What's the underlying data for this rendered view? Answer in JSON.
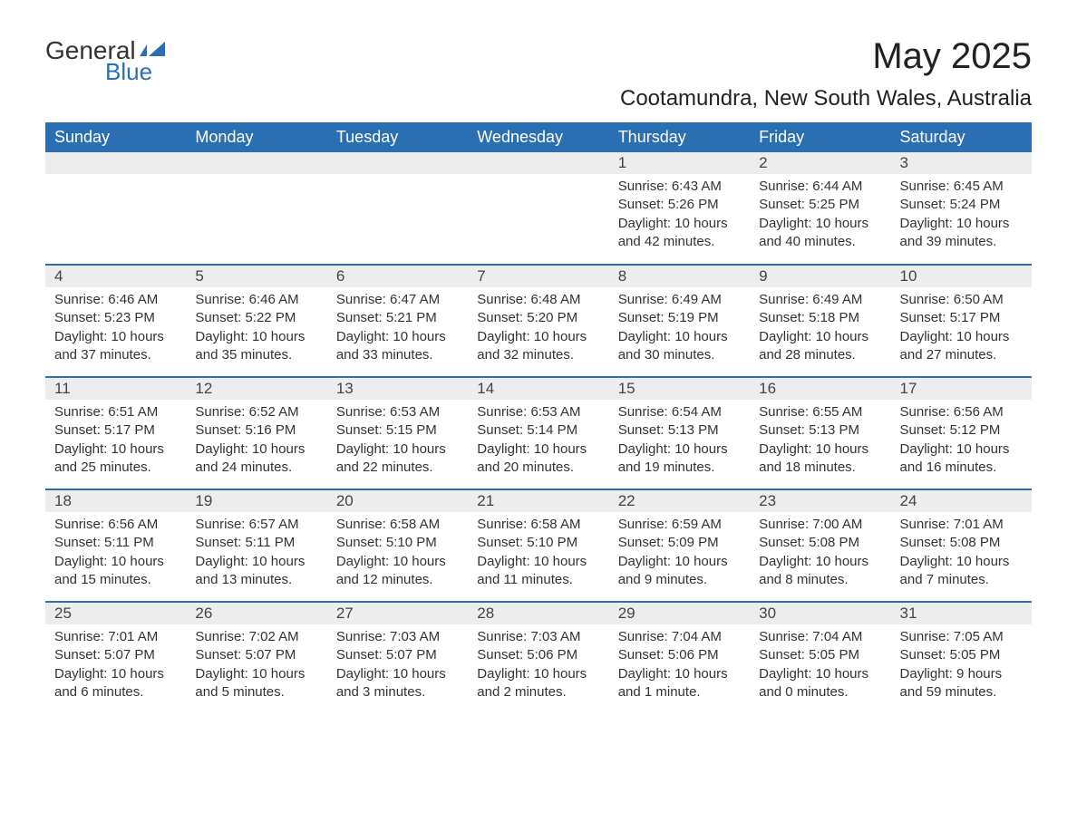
{
  "logo": {
    "text1": "General",
    "text2": "Blue",
    "icon_color": "#2b6fb3"
  },
  "title": "May 2025",
  "location": "Cootamundra, New South Wales, Australia",
  "colors": {
    "header_bg": "#2b6fb3",
    "header_fg": "#ffffff",
    "row_rule": "#2b6fb3",
    "daynum_bg": "#ededed",
    "text": "#333333",
    "background": "#ffffff"
  },
  "fonts": {
    "title_size": 40,
    "location_size": 24,
    "th_size": 18,
    "daynum_size": 17,
    "body_size": 15
  },
  "weekdays": [
    "Sunday",
    "Monday",
    "Tuesday",
    "Wednesday",
    "Thursday",
    "Friday",
    "Saturday"
  ],
  "weeks": [
    [
      null,
      null,
      null,
      null,
      {
        "n": "1",
        "sunrise": "6:43 AM",
        "sunset": "5:26 PM",
        "daylight": "10 hours and 42 minutes."
      },
      {
        "n": "2",
        "sunrise": "6:44 AM",
        "sunset": "5:25 PM",
        "daylight": "10 hours and 40 minutes."
      },
      {
        "n": "3",
        "sunrise": "6:45 AM",
        "sunset": "5:24 PM",
        "daylight": "10 hours and 39 minutes."
      }
    ],
    [
      {
        "n": "4",
        "sunrise": "6:46 AM",
        "sunset": "5:23 PM",
        "daylight": "10 hours and 37 minutes."
      },
      {
        "n": "5",
        "sunrise": "6:46 AM",
        "sunset": "5:22 PM",
        "daylight": "10 hours and 35 minutes."
      },
      {
        "n": "6",
        "sunrise": "6:47 AM",
        "sunset": "5:21 PM",
        "daylight": "10 hours and 33 minutes."
      },
      {
        "n": "7",
        "sunrise": "6:48 AM",
        "sunset": "5:20 PM",
        "daylight": "10 hours and 32 minutes."
      },
      {
        "n": "8",
        "sunrise": "6:49 AM",
        "sunset": "5:19 PM",
        "daylight": "10 hours and 30 minutes."
      },
      {
        "n": "9",
        "sunrise": "6:49 AM",
        "sunset": "5:18 PM",
        "daylight": "10 hours and 28 minutes."
      },
      {
        "n": "10",
        "sunrise": "6:50 AM",
        "sunset": "5:17 PM",
        "daylight": "10 hours and 27 minutes."
      }
    ],
    [
      {
        "n": "11",
        "sunrise": "6:51 AM",
        "sunset": "5:17 PM",
        "daylight": "10 hours and 25 minutes."
      },
      {
        "n": "12",
        "sunrise": "6:52 AM",
        "sunset": "5:16 PM",
        "daylight": "10 hours and 24 minutes."
      },
      {
        "n": "13",
        "sunrise": "6:53 AM",
        "sunset": "5:15 PM",
        "daylight": "10 hours and 22 minutes."
      },
      {
        "n": "14",
        "sunrise": "6:53 AM",
        "sunset": "5:14 PM",
        "daylight": "10 hours and 20 minutes."
      },
      {
        "n": "15",
        "sunrise": "6:54 AM",
        "sunset": "5:13 PM",
        "daylight": "10 hours and 19 minutes."
      },
      {
        "n": "16",
        "sunrise": "6:55 AM",
        "sunset": "5:13 PM",
        "daylight": "10 hours and 18 minutes."
      },
      {
        "n": "17",
        "sunrise": "6:56 AM",
        "sunset": "5:12 PM",
        "daylight": "10 hours and 16 minutes."
      }
    ],
    [
      {
        "n": "18",
        "sunrise": "6:56 AM",
        "sunset": "5:11 PM",
        "daylight": "10 hours and 15 minutes."
      },
      {
        "n": "19",
        "sunrise": "6:57 AM",
        "sunset": "5:11 PM",
        "daylight": "10 hours and 13 minutes."
      },
      {
        "n": "20",
        "sunrise": "6:58 AM",
        "sunset": "5:10 PM",
        "daylight": "10 hours and 12 minutes."
      },
      {
        "n": "21",
        "sunrise": "6:58 AM",
        "sunset": "5:10 PM",
        "daylight": "10 hours and 11 minutes."
      },
      {
        "n": "22",
        "sunrise": "6:59 AM",
        "sunset": "5:09 PM",
        "daylight": "10 hours and 9 minutes."
      },
      {
        "n": "23",
        "sunrise": "7:00 AM",
        "sunset": "5:08 PM",
        "daylight": "10 hours and 8 minutes."
      },
      {
        "n": "24",
        "sunrise": "7:01 AM",
        "sunset": "5:08 PM",
        "daylight": "10 hours and 7 minutes."
      }
    ],
    [
      {
        "n": "25",
        "sunrise": "7:01 AM",
        "sunset": "5:07 PM",
        "daylight": "10 hours and 6 minutes."
      },
      {
        "n": "26",
        "sunrise": "7:02 AM",
        "sunset": "5:07 PM",
        "daylight": "10 hours and 5 minutes."
      },
      {
        "n": "27",
        "sunrise": "7:03 AM",
        "sunset": "5:07 PM",
        "daylight": "10 hours and 3 minutes."
      },
      {
        "n": "28",
        "sunrise": "7:03 AM",
        "sunset": "5:06 PM",
        "daylight": "10 hours and 2 minutes."
      },
      {
        "n": "29",
        "sunrise": "7:04 AM",
        "sunset": "5:06 PM",
        "daylight": "10 hours and 1 minute."
      },
      {
        "n": "30",
        "sunrise": "7:04 AM",
        "sunset": "5:05 PM",
        "daylight": "10 hours and 0 minutes."
      },
      {
        "n": "31",
        "sunrise": "7:05 AM",
        "sunset": "5:05 PM",
        "daylight": "9 hours and 59 minutes."
      }
    ]
  ],
  "labels": {
    "sunrise": "Sunrise:",
    "sunset": "Sunset:",
    "daylight": "Daylight:"
  }
}
